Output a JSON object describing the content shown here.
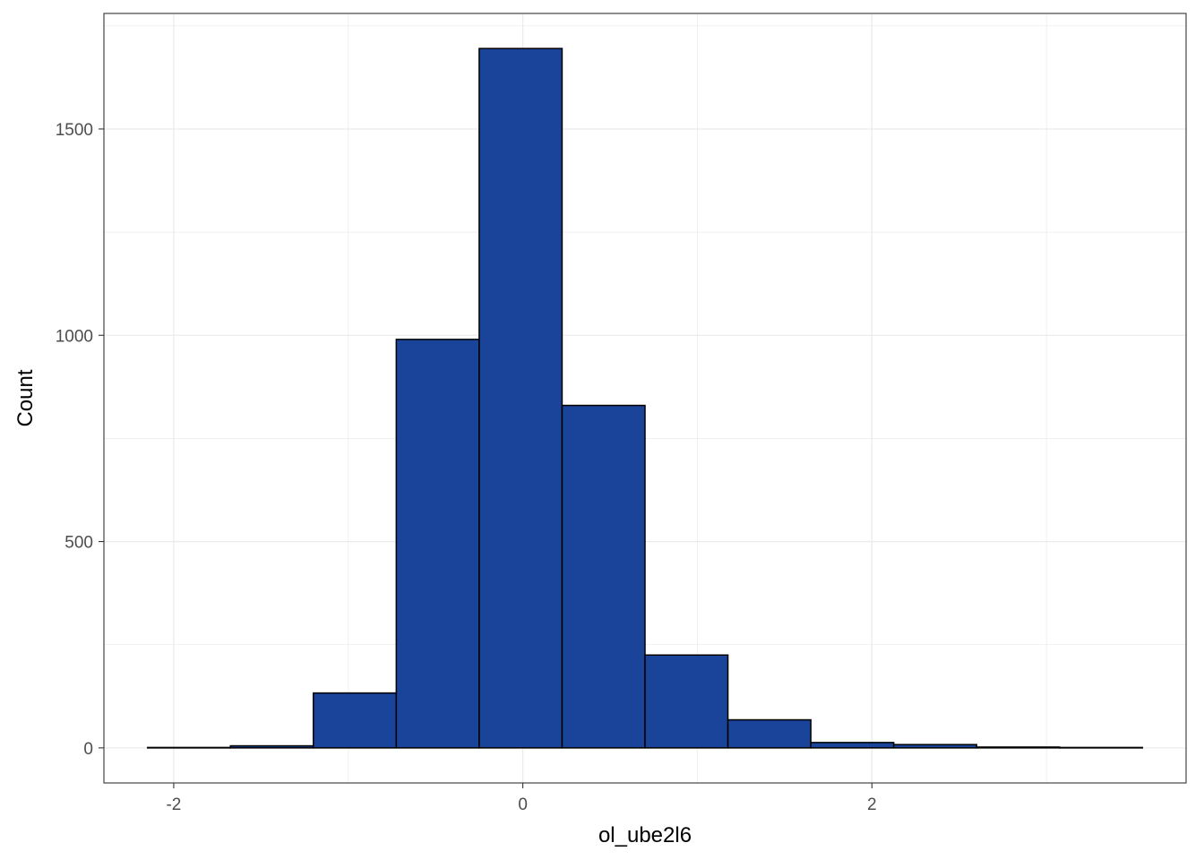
{
  "chart_data": {
    "type": "bar",
    "subtype": "histogram",
    "title": "",
    "xlabel": "ol_ube2l6",
    "ylabel": "Count",
    "xlim": [
      -2.4,
      3.8
    ],
    "ylim": [
      -85,
      1780
    ],
    "x_ticks": [
      -2,
      0,
      2
    ],
    "x_tick_labels": [
      "-2",
      "0",
      "2"
    ],
    "y_ticks": [
      0,
      500,
      1000,
      1500
    ],
    "y_tick_labels": [
      "0",
      "500",
      "1000",
      "1500"
    ],
    "bin_width": 0.475,
    "bins": [
      {
        "x0": -2.15,
        "x1": -1.675,
        "count": 1
      },
      {
        "x0": -1.675,
        "x1": -1.2,
        "count": 5
      },
      {
        "x0": -1.2,
        "x1": -0.725,
        "count": 133
      },
      {
        "x0": -0.725,
        "x1": -0.25,
        "count": 990
      },
      {
        "x0": -0.25,
        "x1": 0.225,
        "count": 1695
      },
      {
        "x0": 0.225,
        "x1": 0.7,
        "count": 830
      },
      {
        "x0": 0.7,
        "x1": 1.175,
        "count": 225
      },
      {
        "x0": 1.175,
        "x1": 1.65,
        "count": 68
      },
      {
        "x0": 1.65,
        "x1": 2.125,
        "count": 13
      },
      {
        "x0": 2.125,
        "x1": 2.6,
        "count": 8
      },
      {
        "x0": 2.6,
        "x1": 3.075,
        "count": 2
      },
      {
        "x0": 3.075,
        "x1": 3.55,
        "count": 1
      }
    ],
    "grid": true,
    "legend": "none",
    "colors": {
      "bar_fill": "#1a4499",
      "bar_stroke": "#000000",
      "grid": "#ebebeb",
      "panel_border": "#333333",
      "tick_text": "#4d4d4d"
    }
  }
}
